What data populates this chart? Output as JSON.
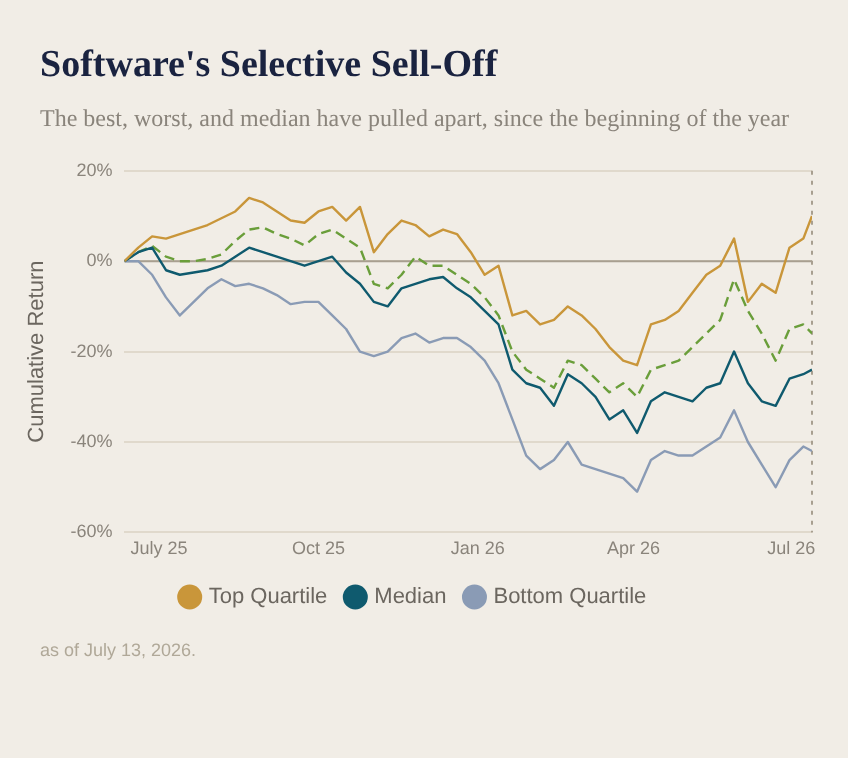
{
  "chart_data": {
    "type": "line",
    "title": "Software's Selective Sell-Off",
    "subtitle": "The best, worst, and median have pulled apart, since the beginning of the year",
    "ylabel": "Cumulative Return",
    "x": [
      "2025-06-11",
      "2025-06-19",
      "2025-06-27",
      "2025-07-05",
      "2025-07-13",
      "2025-07-21",
      "2025-07-29",
      "2025-08-06",
      "2025-08-14",
      "2025-08-22",
      "2025-08-30",
      "2025-09-07",
      "2025-09-15",
      "2025-09-23",
      "2025-10-01",
      "2025-10-09",
      "2025-10-17",
      "2025-10-25",
      "2025-11-02",
      "2025-11-10",
      "2025-11-18",
      "2025-11-26",
      "2025-12-04",
      "2025-12-12",
      "2025-12-20",
      "2025-12-28",
      "2026-01-05",
      "2026-01-13",
      "2026-01-21",
      "2026-01-29",
      "2026-02-06",
      "2026-02-14",
      "2026-02-22",
      "2026-03-02",
      "2026-03-10",
      "2026-03-18",
      "2026-03-26",
      "2026-04-03",
      "2026-04-11",
      "2026-04-19",
      "2026-04-27",
      "2026-05-05",
      "2026-05-13",
      "2026-05-21",
      "2026-05-29",
      "2026-06-06",
      "2026-06-14",
      "2026-06-22",
      "2026-06-30",
      "2026-07-08",
      "2026-07-13"
    ],
    "series": [
      {
        "name": "Top Quartile",
        "color": "#c9963a",
        "values": [
          0,
          3,
          5.5,
          5,
          6,
          7,
          8,
          9.5,
          11,
          14,
          13,
          11,
          9,
          8.5,
          11,
          12,
          9,
          12,
          2,
          6,
          9,
          8,
          5.5,
          7,
          6,
          2,
          -3,
          -1,
          -12,
          -11,
          -14,
          -13,
          -10,
          -12,
          -15,
          -19,
          -22,
          -23,
          -14,
          -13,
          -11,
          -7,
          -3,
          -1,
          5,
          -9,
          -5,
          -7,
          3,
          5,
          10
        ]
      },
      {
        "name": "Median",
        "color": "#0f5a6e",
        "values": [
          0,
          2,
          3,
          -2,
          -3,
          -2.5,
          -2,
          -1,
          1,
          3,
          2,
          1,
          0,
          -1,
          0,
          1,
          -2.5,
          -5,
          -9,
          -10,
          -6,
          -5,
          -4,
          -3.5,
          -6,
          -8,
          -11,
          -14,
          -24,
          -27,
          -28,
          -32,
          -25,
          -27,
          -30,
          -35,
          -33,
          -38,
          -31,
          -29,
          -30,
          -31,
          -28,
          -27,
          -20,
          -27,
          -31,
          -32,
          -26,
          -25,
          -24
        ]
      },
      {
        "name": "Bottom Quartile",
        "color": "#8a9bb5",
        "values": [
          0,
          0,
          -3,
          -8,
          -12,
          -9,
          -6,
          -4,
          -5.5,
          -5,
          -6,
          -7.5,
          -9.5,
          -9,
          -9,
          -12,
          -15,
          -20,
          -21,
          -20,
          -17,
          -16,
          -18,
          -17,
          -17,
          -19,
          -22,
          -27,
          -35,
          -43,
          -46,
          -44,
          -40,
          -45,
          -46,
          -47,
          -48,
          -51,
          -44,
          -42,
          -43,
          -43,
          -41,
          -39,
          -33,
          -40,
          -45,
          -50,
          -44,
          -41,
          -42
        ]
      },
      {
        "color": "#6a9e3a",
        "line_style": "dashed",
        "values": [
          0,
          2,
          3.4,
          1,
          0,
          0,
          0.5,
          1.5,
          4.5,
          7,
          7.5,
          6,
          5,
          3.5,
          6,
          7,
          5,
          3,
          -5,
          -6,
          -3,
          1,
          -1,
          -1,
          -3,
          -5,
          -8,
          -12,
          -20,
          -24,
          -26,
          -28,
          -22,
          -23,
          -26,
          -29,
          -27,
          -30,
          -24,
          -23,
          -22,
          -19,
          -16,
          -13,
          -4,
          -11,
          -16,
          -22,
          -15,
          -14,
          -16
        ]
      }
    ],
    "xlim": [
      "2025-06-11",
      "2026-07-13"
    ],
    "xticks": [
      {
        "value": "2025-07-01",
        "label": "July 25"
      },
      {
        "value": "2025-10-01",
        "label": "Oct 25"
      },
      {
        "value": "2026-01-01",
        "label": "Jan 26"
      },
      {
        "value": "2026-04-01",
        "label": "Apr 26"
      },
      {
        "value": "2026-07-01",
        "label": "Jul 26"
      }
    ],
    "ylim": [
      -60,
      20
    ],
    "yticks": [
      {
        "value": -60,
        "label": "-60%"
      },
      {
        "value": -40,
        "label": "-40%"
      },
      {
        "value": -20,
        "label": "-20%"
      },
      {
        "value": 0,
        "label": "0%"
      },
      {
        "value": 20,
        "label": "20%"
      }
    ],
    "ref_lines": [
      {
        "axis": "y",
        "value": 0,
        "color": "#a89f90",
        "line_style": "solid"
      },
      {
        "axis": "x",
        "value": "2026-07-13",
        "color": "#a89f90",
        "line_style": "dotted"
      }
    ],
    "grid": "y",
    "legend": "bottom",
    "annotations": [
      "as of July 13, 2026."
    ]
  }
}
